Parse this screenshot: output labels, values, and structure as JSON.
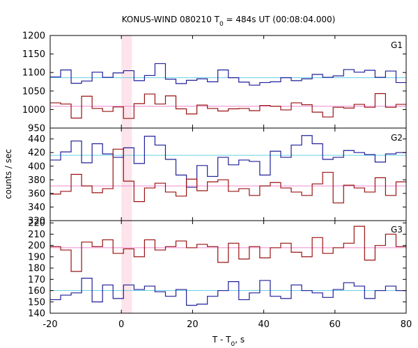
{
  "chart_data": {
    "type": "line",
    "title_main": "KONUS-WIND 080210 T",
    "title_sub": "0",
    "title_rest": " = 484s UT (00:08:04.000)",
    "xlabel_main": "T - T",
    "xlabel_sub": "0",
    "xlabel_rest": ", s",
    "ylabel": "counts / sec",
    "xlim": [
      -20,
      80
    ],
    "x_ticks": [
      -20,
      0,
      20,
      40,
      60,
      80
    ],
    "x_tick_labels": [
      "-20",
      "0",
      "20",
      "40",
      "60",
      "80"
    ],
    "highlight_interval": [
      0,
      2.944
    ],
    "bin_edges": [
      -20,
      -17.056,
      -14.112,
      -11.168,
      -8.224,
      -5.28,
      -2.336,
      0.608,
      3.552,
      6.496,
      9.44,
      12.384,
      15.328,
      18.272,
      21.216,
      24.16,
      27.104,
      30.048,
      32.992,
      35.936,
      38.88,
      41.824,
      44.768,
      47.712,
      50.656,
      53.6,
      56.544,
      59.488,
      62.432,
      65.376,
      68.32,
      71.264,
      74.208,
      77.152,
      80
    ],
    "colors": {
      "blue": "#1f1f9a",
      "red": "#991111",
      "cyan": "#66d0e8",
      "pink": "#f08ad0",
      "highlight": "#fde4ea"
    },
    "panels": [
      {
        "name": "G1",
        "ylim": [
          950,
          1200
        ],
        "y_ticks": [
          950,
          1000,
          1050,
          1100,
          1150,
          1200
        ],
        "y_tick_labels": [
          "950",
          "1000",
          "1050",
          "1100",
          "1150",
          "1200"
        ],
        "series": [
          {
            "name": "G1 blue",
            "color": "blue",
            "background": 1086,
            "values": [
              1088,
              1107,
              1071,
              1077,
              1101,
              1087,
              1099,
              1105,
              1078,
              1092,
              1124,
              1082,
              1070,
              1079,
              1083,
              1075,
              1107,
              1086,
              1074,
              1066,
              1073,
              1075,
              1086,
              1078,
              1083,
              1095,
              1087,
              1091,
              1108,
              1101,
              1106,
              1087,
              1104,
              1073
            ]
          },
          {
            "name": "G1 red",
            "color": "red",
            "background": 1009,
            "values": [
              1018,
              1015,
              977,
              1036,
              1003,
              995,
              1007,
              976,
              1016,
              1042,
              1015,
              1037,
              1002,
              988,
              1012,
              1003,
              996,
              1002,
              1003,
              997,
              1011,
              1009,
              999,
              1018,
              1013,
              993,
              980,
              1006,
              1004,
              1014,
              1006,
              1043,
              1006,
              1014
            ]
          }
        ]
      },
      {
        "name": "G2",
        "ylim": [
          320,
          456
        ],
        "y_ticks": [
          320,
          340,
          360,
          380,
          400,
          420,
          440
        ],
        "y_tick_labels": [
          "320",
          "340",
          "360",
          "380",
          "400",
          "420",
          "440"
        ],
        "series": [
          {
            "name": "G2 blue",
            "color": "blue",
            "background": 416,
            "values": [
              409,
              421,
              437,
              405,
              433,
              418,
              413,
              427,
              404,
              444,
              431,
              410,
              387,
              369,
              401,
              385,
              413,
              402,
              409,
              407,
              387,
              422,
              413,
              431,
              445,
              433,
              410,
              413,
              423,
              420,
              417,
              406,
              418,
              420
            ]
          },
          {
            "name": "G2 red",
            "color": "red",
            "background": 371,
            "values": [
              359,
              363,
              388,
              371,
              361,
              367,
              425,
              378,
              348,
              368,
              375,
              362,
              356,
              381,
              364,
              377,
              380,
              363,
              367,
              357,
              371,
              376,
              368,
              362,
              357,
              374,
              391,
              346,
              372,
              368,
              362,
              383,
              357,
              377
            ]
          }
        ]
      },
      {
        "name": "G3",
        "ylim": [
          140,
          222
        ],
        "y_ticks": [
          140,
          150,
          160,
          170,
          180,
          190,
          200,
          210,
          220
        ],
        "y_tick_labels": [
          "140",
          "150",
          "160",
          "170",
          "180",
          "190",
          "200",
          "210",
          "220"
        ],
        "series": [
          {
            "name": "G3 red",
            "color": "red",
            "background": 198,
            "values": [
              199,
              196,
              177,
              203,
              199,
              205,
              193,
              197,
              190,
              205,
              196,
              199,
              204,
              198,
              201,
              199,
              185,
              202,
              188,
              199,
              189,
              198,
              202,
              194,
              190,
              207,
              193,
              198,
              202,
              217,
              187,
              200,
              210,
              199
            ]
          },
          {
            "name": "G3 blue",
            "color": "blue",
            "background": 160,
            "values": [
              152,
              156,
              158,
              171,
              150,
              165,
              153,
              165,
              161,
              164,
              159,
              155,
              161,
              147,
              148,
              155,
              160,
              168,
              152,
              158,
              169,
              155,
              153,
              165,
              160,
              158,
              154,
              161,
              167,
              164,
              153,
              160,
              164,
              160
            ]
          }
        ]
      }
    ]
  }
}
